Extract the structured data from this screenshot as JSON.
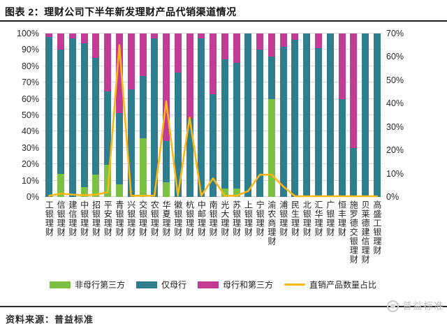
{
  "title": "图表 2：理财公司下半年新发理财产品代销渠道情况",
  "source": "资料来源：普益标准",
  "watermark": "普益标准",
  "colors": {
    "bar_green": "#7BC144",
    "bar_teal": "#2E7E8F",
    "bar_magenta": "#C13B97",
    "line_yellow": "#FDB714",
    "gridline": "#d9d9d9",
    "rule": "#1c1c1c",
    "watermark_gray": "#c3c3c3"
  },
  "chart_data": {
    "type": "bar",
    "subtype": "stacked-percent-with-line",
    "grid": true,
    "legend_position": "bottom",
    "categories": [
      "工银理财",
      "信银理财",
      "建信理财",
      "中银理财",
      "招银理财",
      "平安理财",
      "青银理财",
      "兴银理财",
      "交银理财",
      "农银理财",
      "华夏理财",
      "徽银理财",
      "杭银理财",
      "中邮理财",
      "南银理财",
      "光大理财",
      "苏银理财",
      "上银理财",
      "宁银理财",
      "渝农商理财",
      "浦银理财",
      "民生理财",
      "北银理财",
      "汇华理财",
      "广银理财",
      "恒丰理财",
      "施罗德交银理财",
      "贝莱德建信理财",
      "高盛工银理财"
    ],
    "series": [
      {
        "name": "非母行第三方",
        "type": "bar",
        "axis": "left",
        "color": "#7BC144",
        "values": [
          0,
          14,
          0,
          6,
          13.5,
          19.5,
          7.5,
          0,
          36,
          0,
          9,
          0,
          0,
          0,
          0,
          5,
          5,
          0,
          0,
          60,
          0,
          0,
          0,
          0,
          0,
          0,
          0,
          0,
          0
        ]
      },
      {
        "name": "仅母行",
        "type": "bar",
        "axis": "left",
        "color": "#2E7E8F",
        "values": [
          98,
          76,
          97,
          88,
          71.5,
          45,
          44,
          66,
          38,
          97,
          25,
          76,
          48,
          97,
          63,
          79,
          77,
          100,
          90,
          26,
          92,
          96,
          100,
          91,
          100,
          60,
          30,
          100,
          100
        ]
      },
      {
        "name": "母行和第三方",
        "type": "bar",
        "axis": "left",
        "color": "#C13B97",
        "values": [
          2,
          10,
          3,
          6,
          15,
          35.5,
          48.5,
          34,
          26,
          3,
          66,
          24,
          52,
          3,
          37,
          16,
          18,
          0,
          10,
          14,
          8,
          4,
          0,
          9,
          0,
          40,
          70,
          0,
          0
        ]
      },
      {
        "name": "直销产品数量占比",
        "type": "line",
        "axis": "right",
        "color": "#FDB714",
        "values": [
          0.5,
          1.4,
          1,
          0.7,
          1,
          2,
          65,
          0.5,
          0.5,
          0.5,
          41,
          0.5,
          34,
          0.5,
          8,
          0.5,
          0.5,
          2.5,
          9.5,
          9.5,
          4.5,
          0.3,
          0.3,
          0.3,
          0.3,
          0.3,
          0.3,
          0.3,
          0.3
        ]
      }
    ],
    "left_axis": {
      "min": 0,
      "max": 100,
      "ticks": [
        "0%",
        "10%",
        "20%",
        "30%",
        "40%",
        "50%",
        "60%",
        "70%",
        "80%",
        "90%",
        "100%"
      ]
    },
    "right_axis": {
      "min": 0,
      "max": 70,
      "ticks": [
        "0%",
        "10%",
        "20%",
        "30%",
        "40%",
        "50%",
        "60%",
        "70%"
      ]
    }
  }
}
